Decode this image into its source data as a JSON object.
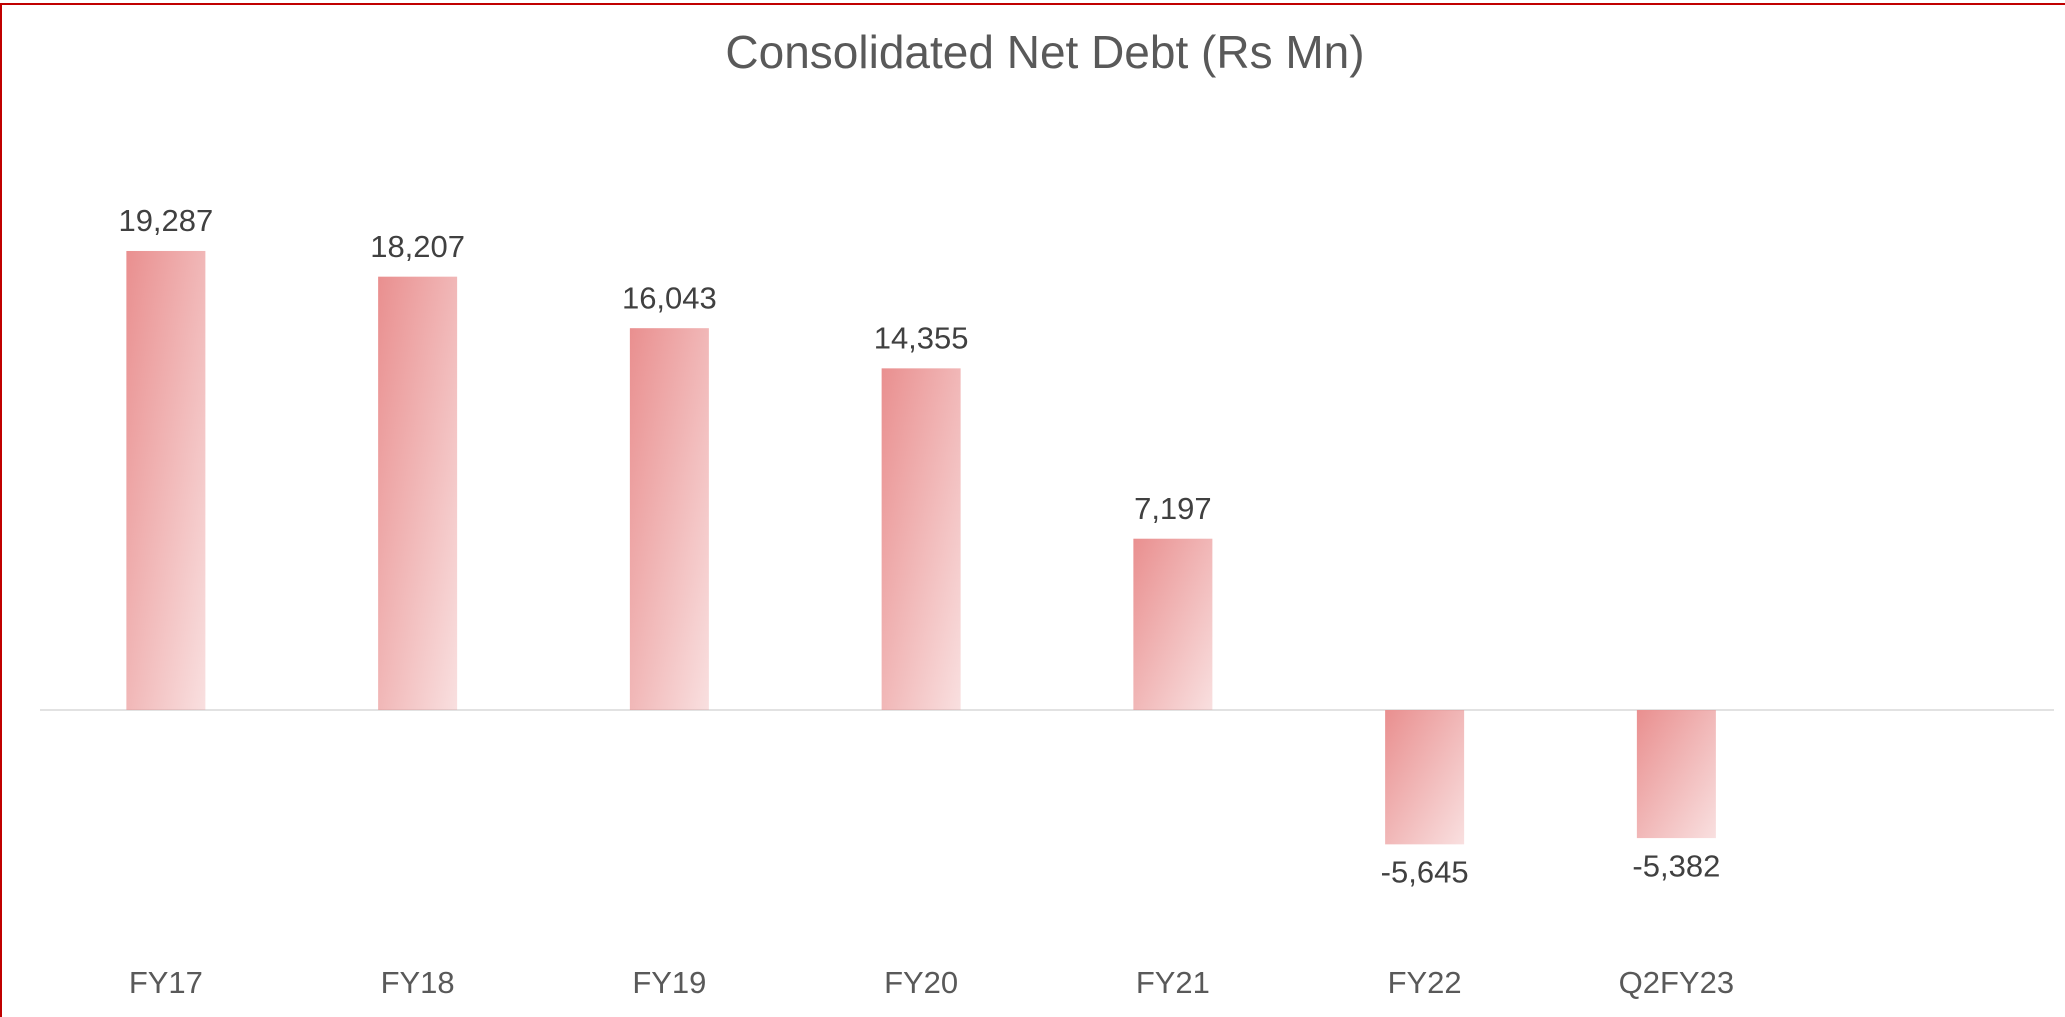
{
  "chart_data": {
    "type": "bar",
    "title": "Consolidated Net Debt (Rs Mn)",
    "categories": [
      "FY17",
      "FY18",
      "FY19",
      "FY20",
      "FY21",
      "FY22",
      "Q2FY23",
      null
    ],
    "values": [
      19287,
      18207,
      16043,
      14355,
      7197,
      -5645,
      -5382,
      null
    ],
    "value_labels": [
      "19,287",
      "18,207",
      "16,043",
      "14,355",
      "7,197",
      "-5,645",
      "-5,382",
      null
    ],
    "color": "#e98f8f",
    "ylim": [
      -10000,
      25000
    ],
    "grid": false
  }
}
